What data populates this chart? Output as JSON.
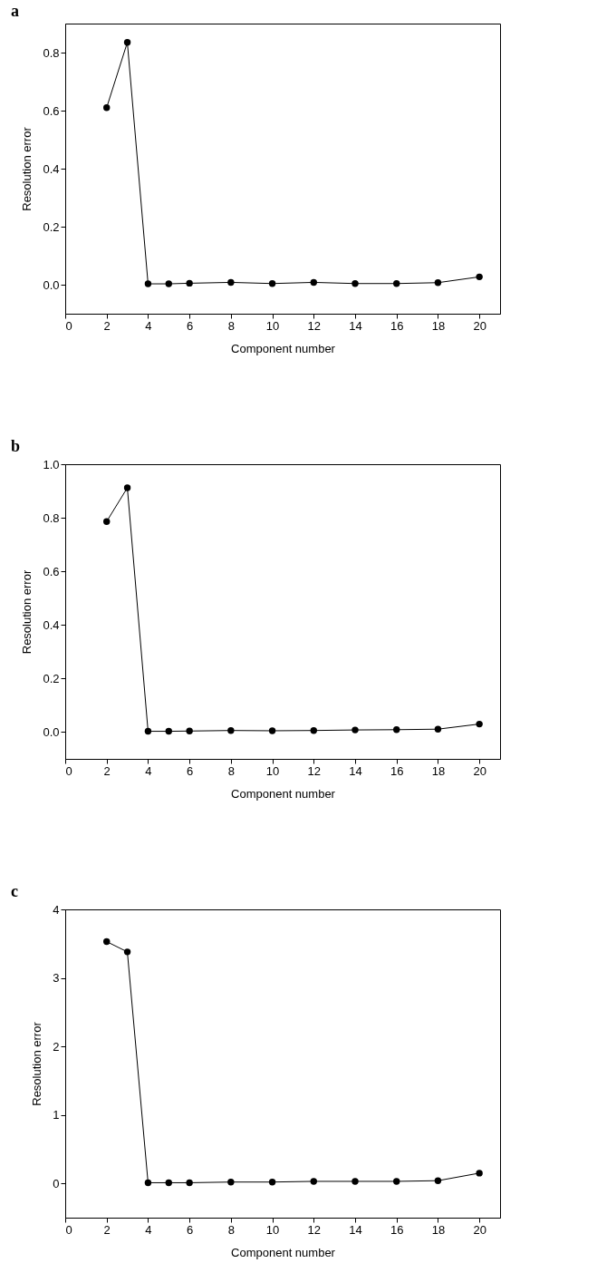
{
  "chart_data": [
    {
      "type": "line",
      "title": "a",
      "xlabel": "Component number",
      "ylabel": "Resolution error",
      "x": [
        2,
        3,
        4,
        5,
        6,
        8,
        10,
        12,
        14,
        16,
        18,
        20
      ],
      "series": [
        {
          "color": "#000000",
          "values": [
            0.61,
            0.835,
            0.003,
            0.003,
            0.005,
            0.008,
            0.004,
            0.008,
            0.004,
            0.004,
            0.007,
            0.027
          ]
        }
      ],
      "xlim": [
        0,
        21
      ],
      "xticks": [
        0,
        2,
        4,
        6,
        8,
        10,
        12,
        14,
        16,
        18,
        20
      ],
      "ylim": [
        -0.1,
        0.9
      ],
      "yticks": [
        {
          "value": 0,
          "label": "0.0"
        },
        {
          "value": 0.2,
          "label": "0.2"
        },
        {
          "value": 0.4,
          "label": "0.4"
        },
        {
          "value": 0.6,
          "label": "0.6"
        },
        {
          "value": 0.8,
          "label": "0.8"
        }
      ],
      "grid": false,
      "marker": "circle",
      "line_style": "solid"
    },
    {
      "type": "line",
      "title": "b",
      "xlabel": "Component number",
      "ylabel": "Resolution error",
      "x": [
        2,
        3,
        4,
        5,
        6,
        8,
        10,
        12,
        14,
        16,
        18,
        20
      ],
      "series": [
        {
          "color": "#000000",
          "values": [
            0.786,
            0.912,
            0.003,
            0.003,
            0.004,
            0.006,
            0.005,
            0.006,
            0.008,
            0.009,
            0.011,
            0.03
          ]
        }
      ],
      "xlim": [
        0,
        21
      ],
      "xticks": [
        0,
        2,
        4,
        6,
        8,
        10,
        12,
        14,
        16,
        18,
        20
      ],
      "ylim": [
        -0.1,
        1.0
      ],
      "yticks": [
        {
          "value": 0,
          "label": "0.0"
        },
        {
          "value": 0.2,
          "label": "0.2"
        },
        {
          "value": 0.4,
          "label": "0.4"
        },
        {
          "value": 0.6,
          "label": "0.6"
        },
        {
          "value": 0.8,
          "label": "0.8"
        },
        {
          "value": 1,
          "label": "1.0"
        }
      ],
      "grid": false,
      "marker": "circle",
      "line_style": "solid"
    },
    {
      "type": "line",
      "title": "c",
      "xlabel": "Component number",
      "ylabel": "Resolution error",
      "x": [
        2,
        3,
        4,
        5,
        6,
        8,
        10,
        12,
        14,
        16,
        18,
        20
      ],
      "series": [
        {
          "color": "#000000",
          "values": [
            3.53,
            3.38,
            0.01,
            0.01,
            0.01,
            0.02,
            0.02,
            0.03,
            0.03,
            0.03,
            0.04,
            0.15
          ]
        }
      ],
      "xlim": [
        0,
        21
      ],
      "xticks": [
        0,
        2,
        4,
        6,
        8,
        10,
        12,
        14,
        16,
        18,
        20
      ],
      "ylim": [
        -0.5,
        4
      ],
      "yticks": [
        0,
        1,
        2,
        3,
        4
      ],
      "grid": false,
      "marker": "circle",
      "line_style": "solid"
    }
  ]
}
